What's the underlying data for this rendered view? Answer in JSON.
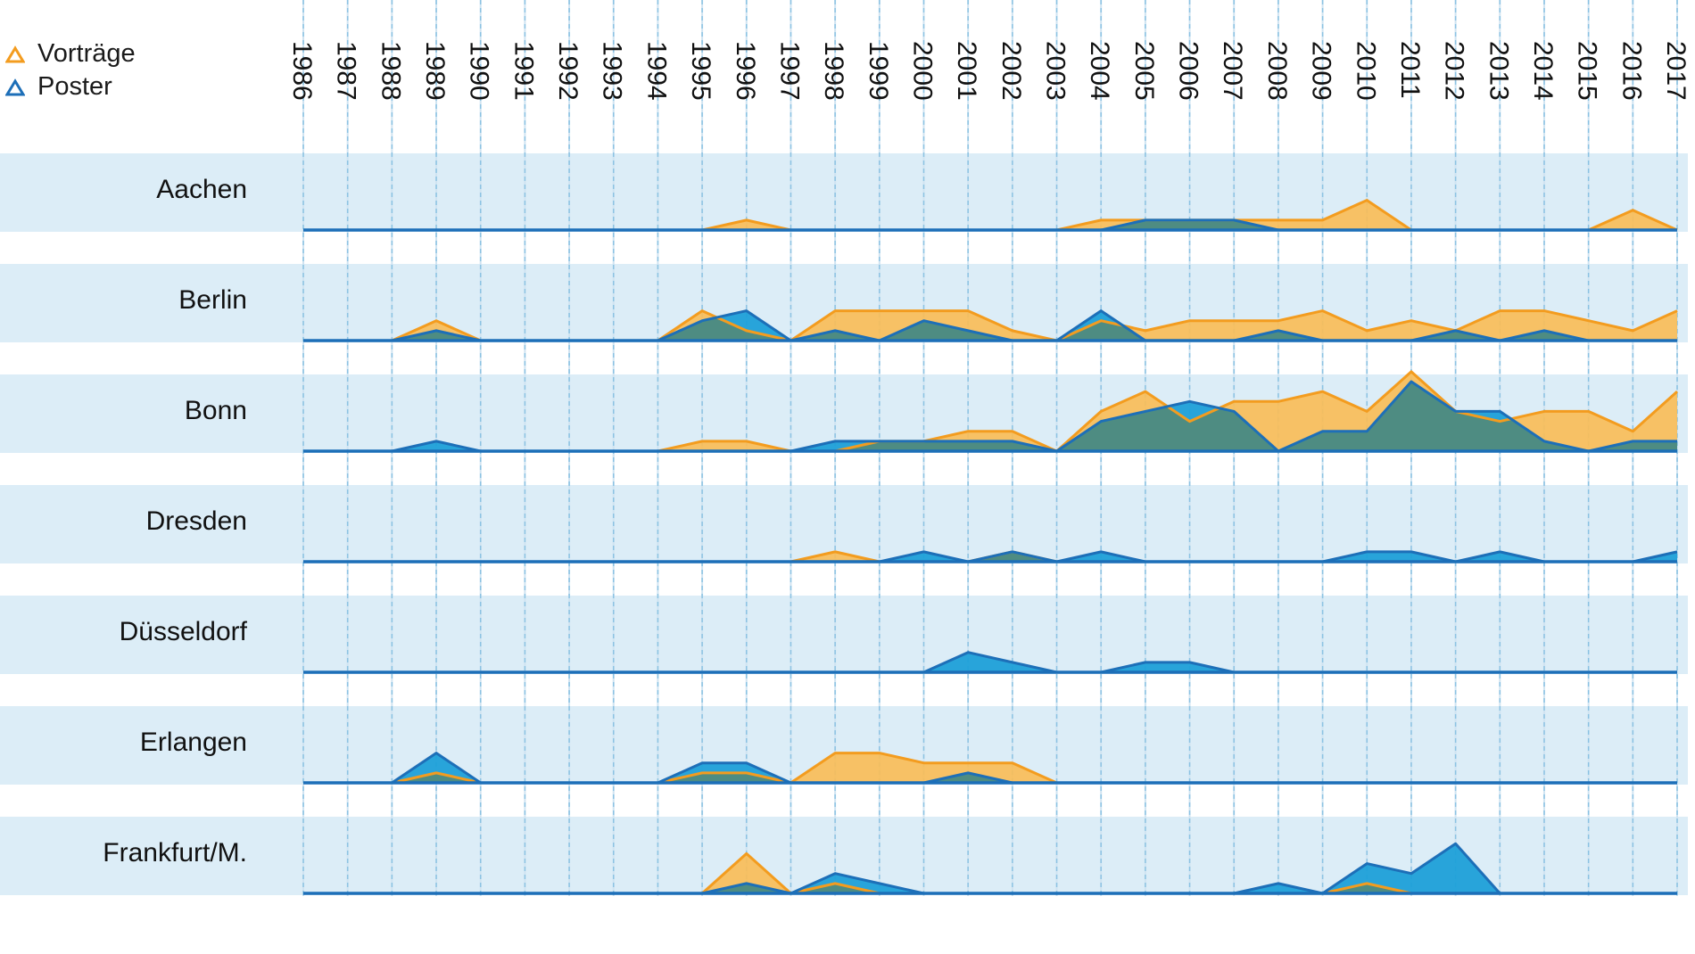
{
  "chart_data": {
    "type": "area",
    "title": "",
    "legend": {
      "position": "top-left",
      "items": [
        {
          "name": "Vorträge",
          "color": "#f5a623",
          "icon": "triangle-outline-icon"
        },
        {
          "name": "Poster",
          "color": "#1a7fc8",
          "icon": "triangle-outline-icon"
        }
      ]
    },
    "x": [
      1986,
      1987,
      1988,
      1989,
      1990,
      1991,
      1992,
      1993,
      1994,
      1995,
      1996,
      1997,
      1998,
      1999,
      2000,
      2001,
      2002,
      2003,
      2004,
      2005,
      2006,
      2007,
      2008,
      2009,
      2010,
      2011,
      2012,
      2013,
      2014,
      2015,
      2016,
      2017
    ],
    "ylim": [
      0,
      7
    ],
    "grid": true,
    "colors": {
      "band": "#dcedf7",
      "gridline": "#8cc3e3",
      "baseline": "#1d6fb8",
      "vortraege_fill": "#f9bd58",
      "vortraege_line": "#f39c1f",
      "poster_fill": "#1ea0d8",
      "poster_line": "#1d6fb8",
      "overlap": "#4e8c82"
    },
    "cities": [
      {
        "name": "Aachen",
        "vortraege": [
          0,
          0,
          0,
          0,
          0,
          0,
          0,
          0,
          0,
          0,
          1,
          0,
          0,
          0,
          0,
          0,
          0,
          0,
          1,
          1,
          1,
          1,
          1,
          1,
          3,
          0,
          0,
          0,
          0,
          0,
          2,
          0
        ],
        "poster": [
          0,
          0,
          0,
          0,
          0,
          0,
          0,
          0,
          0,
          0,
          0,
          0,
          0,
          0,
          0,
          0,
          0,
          0,
          0,
          1,
          1,
          1,
          0,
          0,
          0,
          0,
          0,
          0,
          0,
          0,
          0,
          0
        ]
      },
      {
        "name": "Berlin",
        "vortraege": [
          0,
          0,
          0,
          2,
          0,
          0,
          0,
          0,
          0,
          3,
          1,
          0,
          3,
          3,
          3,
          3,
          1,
          0,
          2,
          1,
          2,
          2,
          2,
          3,
          1,
          2,
          1,
          3,
          3,
          2,
          1,
          3
        ],
        "poster": [
          0,
          0,
          0,
          1,
          0,
          0,
          0,
          0,
          0,
          2,
          3,
          0,
          1,
          0,
          2,
          1,
          0,
          0,
          3,
          0,
          0,
          0,
          1,
          0,
          0,
          0,
          1,
          0,
          1,
          0,
          0,
          0
        ]
      },
      {
        "name": "Bonn",
        "vortraege": [
          0,
          0,
          0,
          0,
          0,
          0,
          0,
          0,
          0,
          1,
          1,
          0,
          0,
          1,
          1,
          2,
          2,
          0,
          4,
          6,
          3,
          5,
          5,
          6,
          4,
          8,
          4,
          3,
          4,
          4,
          2,
          6
        ],
        "poster": [
          0,
          0,
          0,
          1,
          0,
          0,
          0,
          0,
          0,
          0,
          0,
          0,
          1,
          1,
          1,
          1,
          1,
          0,
          3,
          4,
          5,
          4,
          0,
          2,
          2,
          7,
          4,
          4,
          1,
          0,
          1,
          1
        ]
      },
      {
        "name": "Dresden",
        "vortraege": [
          0,
          0,
          0,
          0,
          0,
          0,
          0,
          0,
          0,
          0,
          0,
          0,
          1,
          0,
          0,
          0,
          1,
          0,
          0,
          0,
          0,
          0,
          0,
          0,
          0,
          0,
          0,
          0,
          0,
          0,
          0,
          0
        ],
        "poster": [
          0,
          0,
          0,
          0,
          0,
          0,
          0,
          0,
          0,
          0,
          0,
          0,
          0,
          0,
          1,
          0,
          1,
          0,
          1,
          0,
          0,
          0,
          0,
          0,
          1,
          1,
          0,
          1,
          0,
          0,
          0,
          1
        ]
      },
      {
        "name": "Düsseldorf",
        "vortraege": [
          0,
          0,
          0,
          0,
          0,
          0,
          0,
          0,
          0,
          0,
          0,
          0,
          0,
          0,
          0,
          0,
          0,
          0,
          0,
          0,
          0,
          0,
          0,
          0,
          0,
          0,
          0,
          0,
          0,
          0,
          0,
          0
        ],
        "poster": [
          0,
          0,
          0,
          0,
          0,
          0,
          0,
          0,
          0,
          0,
          0,
          0,
          0,
          0,
          0,
          2,
          1,
          0,
          0,
          1,
          1,
          0,
          0,
          0,
          0,
          0,
          0,
          0,
          0,
          0,
          0,
          0
        ]
      },
      {
        "name": "Erlangen",
        "vortraege": [
          0,
          0,
          0,
          1,
          0,
          0,
          0,
          0,
          0,
          1,
          1,
          0,
          3,
          3,
          2,
          2,
          2,
          0,
          0,
          0,
          0,
          0,
          0,
          0,
          0,
          0,
          0,
          0,
          0,
          0,
          0,
          0
        ],
        "poster": [
          0,
          0,
          0,
          3,
          0,
          0,
          0,
          0,
          0,
          2,
          2,
          0,
          0,
          0,
          0,
          1,
          0,
          0,
          0,
          0,
          0,
          0,
          0,
          0,
          0,
          0,
          0,
          0,
          0,
          0,
          0,
          0
        ]
      },
      {
        "name": "Frankfurt/M.",
        "vortraege": [
          0,
          0,
          0,
          0,
          0,
          0,
          0,
          0,
          0,
          0,
          4,
          0,
          1,
          0,
          0,
          0,
          0,
          0,
          0,
          0,
          0,
          0,
          0,
          0,
          1,
          0,
          0,
          0,
          0,
          0,
          0,
          0
        ],
        "poster": [
          0,
          0,
          0,
          0,
          0,
          0,
          0,
          0,
          0,
          0,
          1,
          0,
          2,
          1,
          0,
          0,
          0,
          0,
          0,
          0,
          0,
          0,
          1,
          0,
          3,
          2,
          5,
          0,
          0,
          0,
          0,
          0
        ]
      }
    ]
  }
}
